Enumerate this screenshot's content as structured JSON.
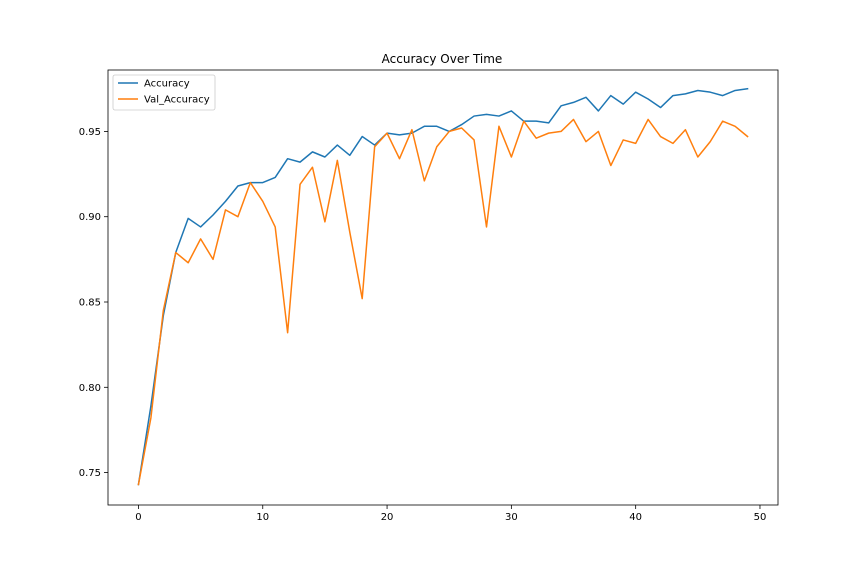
{
  "chart_data": {
    "type": "line",
    "title": "Accuracy Over Time",
    "xlabel": "",
    "ylabel": "",
    "xlim": [
      -2.45,
      51.45
    ],
    "ylim": [
      0.731,
      0.986
    ],
    "xticks": [
      0,
      10,
      20,
      30,
      40,
      50
    ],
    "yticks": [
      0.75,
      0.8,
      0.85,
      0.9,
      0.95
    ],
    "ytick_labels": [
      "0.75",
      "0.80",
      "0.85",
      "0.90",
      "0.95"
    ],
    "grid": false,
    "legend_position": "top-left",
    "x": [
      0,
      1,
      2,
      3,
      4,
      5,
      6,
      7,
      8,
      9,
      10,
      11,
      12,
      13,
      14,
      15,
      16,
      17,
      18,
      19,
      20,
      21,
      22,
      23,
      24,
      25,
      26,
      27,
      28,
      29,
      30,
      31,
      32,
      33,
      34,
      35,
      36,
      37,
      38,
      39,
      40,
      41,
      42,
      43,
      44,
      45,
      46,
      47,
      48,
      49
    ],
    "series": [
      {
        "name": "Accuracy",
        "color": "#1f77b4",
        "values": [
          0.743,
          0.789,
          0.842,
          0.879,
          0.899,
          0.894,
          0.901,
          0.909,
          0.918,
          0.92,
          0.92,
          0.923,
          0.934,
          0.932,
          0.938,
          0.935,
          0.942,
          0.936,
          0.947,
          0.942,
          0.949,
          0.948,
          0.949,
          0.953,
          0.953,
          0.95,
          0.954,
          0.959,
          0.96,
          0.959,
          0.962,
          0.956,
          0.956,
          0.955,
          0.965,
          0.967,
          0.97,
          0.962,
          0.971,
          0.966,
          0.973,
          0.969,
          0.964,
          0.971,
          0.972,
          0.974,
          0.973,
          0.971,
          0.974,
          0.975
        ]
      },
      {
        "name": "Val_Accuracy",
        "color": "#ff7f0e",
        "values": [
          0.743,
          0.782,
          0.845,
          0.879,
          0.873,
          0.887,
          0.875,
          0.904,
          0.9,
          0.92,
          0.909,
          0.894,
          0.832,
          0.919,
          0.929,
          0.897,
          0.933,
          0.891,
          0.852,
          0.941,
          0.949,
          0.934,
          0.951,
          0.921,
          0.941,
          0.95,
          0.952,
          0.945,
          0.894,
          0.953,
          0.935,
          0.956,
          0.946,
          0.949,
          0.95,
          0.957,
          0.944,
          0.95,
          0.93,
          0.945,
          0.943,
          0.957,
          0.947,
          0.943,
          0.951,
          0.935,
          0.944,
          0.956,
          0.953,
          0.947
        ]
      }
    ]
  }
}
